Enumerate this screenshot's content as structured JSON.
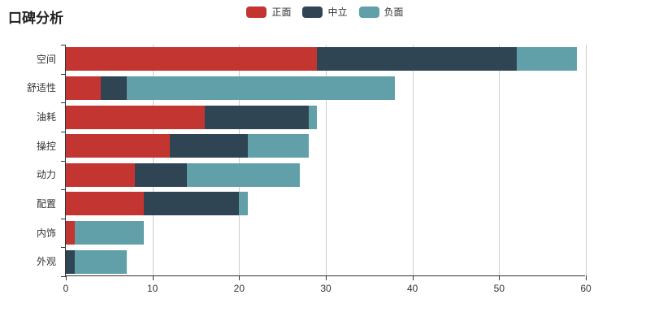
{
  "header": {
    "title": "口碑分析"
  },
  "chart_data": {
    "type": "bar",
    "orientation": "horizontal",
    "stacked": true,
    "title": "口碑分析",
    "categories": [
      "空间",
      "舒适性",
      "油耗",
      "操控",
      "动力",
      "配置",
      "内饰",
      "外观"
    ],
    "categories_order": "top-to-bottom",
    "series": [
      {
        "name": "正面",
        "color": "#c23531",
        "values": [
          29,
          4,
          16,
          12,
          8,
          9,
          1,
          0
        ]
      },
      {
        "name": "中立",
        "color": "#2f4554",
        "values": [
          23,
          3,
          12,
          9,
          6,
          11,
          0,
          1
        ]
      },
      {
        "name": "负面",
        "color": "#61a0a8",
        "values": [
          7,
          31,
          1,
          7,
          13,
          1,
          8,
          6
        ]
      }
    ],
    "totals": [
      59,
      38,
      29,
      28,
      27,
      21,
      9,
      7
    ],
    "xlabel": "",
    "ylabel": "",
    "xlim": [
      0,
      60
    ],
    "xticks": [
      0,
      10,
      20,
      30,
      40,
      50,
      60
    ],
    "grid": true,
    "legend_position": "top-center"
  },
  "colors": {
    "axis": "#333333",
    "grid": "#cccccc",
    "text": "#333333",
    "background": "#ffffff"
  }
}
